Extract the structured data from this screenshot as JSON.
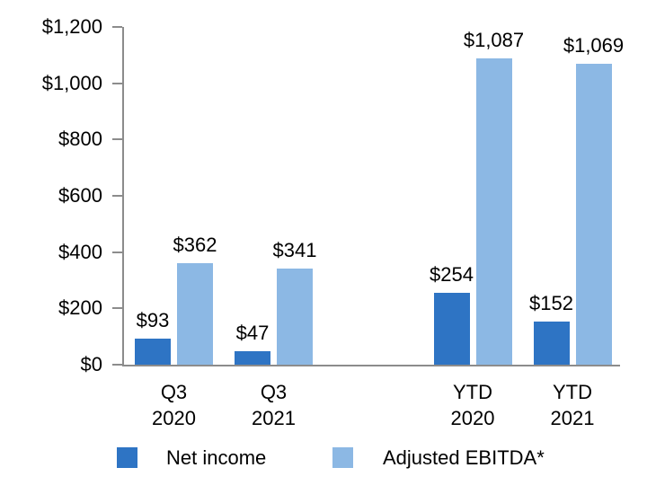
{
  "chart_data": {
    "type": "bar",
    "title": "",
    "categories": [
      {
        "line1": "Q3",
        "line2": "2020"
      },
      {
        "line1": "Q3",
        "line2": "2021"
      },
      {
        "line1": "YTD",
        "line2": "2020"
      },
      {
        "line1": "YTD",
        "line2": "2021"
      }
    ],
    "series": [
      {
        "name": "Net income",
        "color": "#2e74c4",
        "values": [
          93,
          47,
          254,
          152
        ],
        "labels": [
          "$93",
          "$47",
          "$254",
          "$152"
        ]
      },
      {
        "name": "Adjusted EBITDA*",
        "color": "#8cb8e4",
        "values": [
          362,
          341,
          1087,
          1069
        ],
        "labels": [
          "$362",
          "$341",
          "$1,087",
          "$1,069"
        ]
      }
    ],
    "y_axis": {
      "min": 0,
      "max": 1200,
      "tick_interval": 200,
      "tick_labels": [
        "$0",
        "$200",
        "$400",
        "$600",
        "$800",
        "$1,000",
        "$1,200"
      ]
    },
    "grid": false,
    "legend_position": "bottom",
    "data_labels_shown": true
  },
  "legend": {
    "items": [
      {
        "label": "Net income",
        "color": "#2e74c4"
      },
      {
        "label": "Adjusted EBITDA*",
        "color": "#8cb8e4"
      }
    ]
  },
  "colors": {
    "axis": "#8c8c8c",
    "text": "#000000",
    "background": "#ffffff"
  }
}
